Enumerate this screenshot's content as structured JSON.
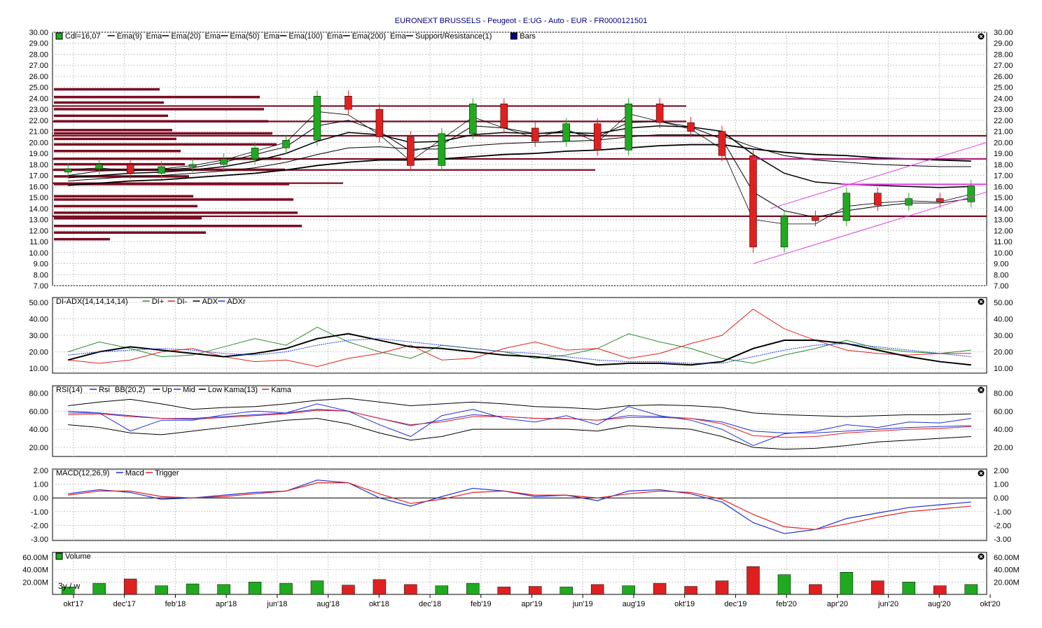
{
  "title": "EURONEXT BRUSSELS - Peugeot - E:UG - Auto - EUR - FR0000121501",
  "x_axis": {
    "labels": [
      "okt'17",
      "dec'17",
      "feb'18",
      "apr'18",
      "jun'18",
      "aug'18",
      "okt'18",
      "dec'18",
      "feb'19",
      "apr'19",
      "jun'19",
      "aug'19",
      "okt'19",
      "dec'19",
      "feb'20",
      "apr'20",
      "jun'20",
      "aug'20",
      "okt'20"
    ],
    "corner_label": "3y / w"
  },
  "panels": {
    "price": {
      "legend": [
        "Cdl=16,07",
        "Ema(9)",
        "Ema",
        "Ema(20)",
        "Ema",
        "Ema(50)",
        "Ema",
        "Ema(100)",
        "Ema",
        "Ema(200)",
        "Ema",
        "Support/Resistance(1)",
        "Bars"
      ],
      "y_ticks": [
        "30.00",
        "29.00",
        "28.00",
        "27.00",
        "26.00",
        "25.00",
        "24.00",
        "23.00",
        "22.00",
        "21.00",
        "20.00",
        "19.00",
        "18.00",
        "17.00",
        "16.00",
        "15.00",
        "14.00",
        "13.00",
        "12.00",
        "11.00",
        "10.00",
        "9.00",
        "8.00",
        "7.00"
      ]
    },
    "adx": {
      "legend": [
        "DI-ADX(14,14,14,14)",
        "DI+",
        "DI-",
        "ADX",
        "ADXr"
      ],
      "y_ticks": [
        "50.00",
        "40.00",
        "30.00",
        "20.00",
        "10.00"
      ]
    },
    "rsi": {
      "legend": [
        "RSI(14)",
        "Rsi",
        "BB(20,2)",
        "Up",
        "Mid",
        "Low",
        "Kama(13)",
        "Kama"
      ],
      "y_ticks": [
        "80.00",
        "60.00",
        "40.00",
        "20.00"
      ]
    },
    "macd": {
      "legend": [
        "MACD(12,26,9)",
        "Macd",
        "Trigger"
      ],
      "y_ticks": [
        "2.00",
        "1.00",
        "0.00",
        "-1.00",
        "-2.00",
        "-3.00"
      ]
    },
    "volume": {
      "legend": [
        "Volume"
      ],
      "y_ticks": [
        "60.00M",
        "40.00M",
        "20.00M"
      ]
    }
  },
  "colors": {
    "bull": "#1faa1f",
    "bear": "#e02020",
    "sr_bar": "#7a0d23",
    "di_plus": "#2e8b2e",
    "di_minus": "#e02020",
    "adx": "#000000",
    "adxr": "#2040e0",
    "rsi": "#2030d0",
    "bb": "#000000",
    "kama": "#e02020",
    "macd": "#2030d0",
    "trigger": "#e02020",
    "trend": "#e040e0"
  },
  "chart_data": {
    "type": "candlestick",
    "x_dates": [
      "2017-09-25",
      "2017-10-30",
      "2017-12-11",
      "2018-01-22",
      "2018-03-05",
      "2018-04-16",
      "2018-05-28",
      "2018-07-09",
      "2018-08-20",
      "2018-10-01",
      "2018-11-12",
      "2018-12-24",
      "2019-02-04",
      "2019-03-18",
      "2019-04-29",
      "2019-06-10",
      "2019-07-22",
      "2019-09-02",
      "2019-10-14",
      "2019-11-25",
      "2020-01-06",
      "2020-02-17",
      "2020-03-16",
      "2020-04-13",
      "2020-05-11",
      "2020-06-08",
      "2020-07-06",
      "2020-08-03",
      "2020-08-31",
      "2020-09-21"
    ],
    "close": [
      17.6,
      18.0,
      17.2,
      17.8,
      18.0,
      18.5,
      19.5,
      20.2,
      24.2,
      23.0,
      20.5,
      17.9,
      20.8,
      23.5,
      21.3,
      20.1,
      21.7,
      19.3,
      23.5,
      21.8,
      21.0,
      18.8,
      10.5,
      13.3,
      12.9,
      15.4,
      14.3,
      14.9,
      14.6,
      16.07
    ],
    "ema9": [
      17.5,
      17.7,
      17.4,
      17.6,
      17.9,
      18.4,
      19.2,
      20.0,
      22.8,
      22.5,
      20.7,
      18.3,
      20.3,
      22.3,
      21.3,
      20.4,
      21.2,
      20.0,
      22.6,
      21.9,
      21.2,
      19.4,
      13.0,
      12.6,
      12.6,
      14.2,
      14.5,
      14.7,
      14.6,
      15.3
    ],
    "ema20": [
      17.0,
      17.4,
      17.5,
      17.5,
      17.7,
      18.2,
      18.9,
      19.6,
      21.5,
      22.0,
      21.0,
      19.2,
      19.8,
      21.5,
      21.3,
      20.8,
      21.0,
      20.5,
      21.8,
      21.9,
      21.4,
      20.3,
      15.5,
      13.8,
      13.2,
      13.8,
      14.2,
      14.5,
      14.5,
      14.9
    ],
    "ema50": [
      16.8,
      17.0,
      17.2,
      17.3,
      17.5,
      17.8,
      18.3,
      19.0,
      20.1,
      20.9,
      20.7,
      20.0,
      20.1,
      20.7,
      20.9,
      20.8,
      20.9,
      20.8,
      21.3,
      21.5,
      21.4,
      21.0,
      18.9,
      17.2,
      16.4,
      16.2,
      16.1,
      16.0,
      15.9,
      16.0
    ],
    "ema100": [
      16.5,
      16.7,
      16.9,
      17.0,
      17.2,
      17.4,
      17.7,
      18.2,
      18.9,
      19.5,
      19.6,
      19.4,
      19.4,
      19.7,
      19.9,
      20.0,
      20.1,
      20.2,
      20.5,
      20.7,
      20.7,
      20.6,
      19.6,
      18.8,
      18.4,
      18.2,
      18.0,
      17.9,
      17.8,
      17.8
    ],
    "ema200": [
      16.1,
      16.3,
      16.5,
      16.6,
      16.8,
      17.0,
      17.2,
      17.5,
      17.9,
      18.2,
      18.4,
      18.4,
      18.5,
      18.7,
      18.9,
      19.0,
      19.2,
      19.3,
      19.5,
      19.7,
      19.8,
      19.8,
      19.4,
      19.1,
      18.9,
      18.8,
      18.6,
      18.5,
      18.4,
      18.3
    ],
    "support_resistance": [
      11.2,
      11.8,
      12.4,
      13.1,
      13.6,
      14.2,
      14.8,
      15.1,
      16.2,
      16.9,
      17.5,
      18.0,
      18.5,
      19.2,
      19.8,
      20.3,
      20.8,
      21.1,
      21.9,
      22.4,
      23.0,
      23.6,
      24.1,
      24.8
    ],
    "di_plus": [
      20,
      26,
      22,
      17,
      18,
      23,
      28,
      24,
      35,
      26,
      20,
      16,
      24,
      22,
      20,
      16,
      18,
      22,
      31,
      26,
      22,
      16,
      13,
      18,
      22,
      27,
      22,
      20,
      19,
      21
    ],
    "di_minus": [
      15,
      13,
      15,
      20,
      22,
      17,
      14,
      15,
      11,
      16,
      19,
      24,
      15,
      16,
      22,
      26,
      21,
      22,
      16,
      19,
      25,
      30,
      46,
      34,
      27,
      21,
      19,
      18,
      19,
      19
    ],
    "adx": [
      15,
      20,
      23,
      21,
      19,
      17,
      19,
      22,
      28,
      31,
      27,
      23,
      22,
      20,
      18,
      17,
      15,
      12,
      13,
      13,
      12,
      14,
      22,
      27,
      27,
      25,
      21,
      17,
      14,
      12
    ],
    "adxr": [
      18,
      20,
      21,
      22,
      21,
      19,
      18,
      20,
      24,
      27,
      28,
      26,
      24,
      22,
      20,
      19,
      17,
      15,
      14,
      14,
      13,
      13,
      17,
      21,
      24,
      25,
      23,
      21,
      19,
      17
    ],
    "rsi": [
      60,
      58,
      38,
      50,
      50,
      56,
      60,
      58,
      68,
      60,
      45,
      32,
      55,
      62,
      52,
      48,
      55,
      45,
      65,
      55,
      50,
      40,
      22,
      35,
      38,
      45,
      42,
      48,
      47,
      52
    ],
    "bb_up": [
      66,
      70,
      73,
      68,
      62,
      64,
      65,
      68,
      72,
      74,
      70,
      66,
      68,
      70,
      68,
      65,
      64,
      62,
      66,
      67,
      66,
      64,
      58,
      56,
      55,
      54,
      55,
      56,
      56,
      57
    ],
    "bb_mid": [
      58,
      58,
      55,
      52,
      52,
      54,
      56,
      58,
      62,
      60,
      52,
      44,
      50,
      56,
      54,
      52,
      52,
      50,
      55,
      54,
      52,
      48,
      38,
      36,
      36,
      38,
      40,
      42,
      43,
      44
    ],
    "bb_low": [
      45,
      42,
      36,
      34,
      38,
      42,
      46,
      50,
      52,
      46,
      36,
      28,
      32,
      40,
      40,
      40,
      40,
      38,
      44,
      42,
      40,
      32,
      20,
      18,
      19,
      22,
      26,
      28,
      30,
      32
    ],
    "kama": [
      56,
      57,
      54,
      52,
      51,
      53,
      55,
      57,
      61,
      60,
      52,
      45,
      48,
      54,
      54,
      52,
      52,
      50,
      53,
      53,
      52,
      46,
      33,
      31,
      32,
      36,
      38,
      40,
      41,
      43
    ],
    "macd": [
      0.3,
      0.6,
      0.4,
      -0.1,
      0.0,
      0.2,
      0.4,
      0.5,
      1.3,
      1.1,
      0.0,
      -0.6,
      0.1,
      0.7,
      0.5,
      0.1,
      0.2,
      -0.2,
      0.5,
      0.6,
      0.3,
      -0.3,
      -1.8,
      -2.6,
      -2.3,
      -1.5,
      -1.1,
      -0.7,
      -0.5,
      -0.3
    ],
    "trigger": [
      0.2,
      0.5,
      0.5,
      0.1,
      0.0,
      0.1,
      0.3,
      0.5,
      1.1,
      1.1,
      0.3,
      -0.4,
      -0.1,
      0.4,
      0.5,
      0.2,
      0.2,
      0.0,
      0.3,
      0.5,
      0.4,
      -0.1,
      -1.2,
      -2.1,
      -2.3,
      -1.9,
      -1.4,
      -1.0,
      -0.8,
      -0.6
    ],
    "volume_millions": [
      12,
      18,
      25,
      14,
      17,
      16,
      20,
      18,
      22,
      15,
      24,
      16,
      14,
      18,
      12,
      13,
      12,
      16,
      14,
      18,
      13,
      22,
      45,
      32,
      16,
      36,
      22,
      20,
      14,
      16
    ],
    "volume_up": [
      true,
      true,
      false,
      true,
      true,
      true,
      true,
      true,
      true,
      false,
      false,
      false,
      true,
      true,
      false,
      false,
      true,
      false,
      true,
      false,
      false,
      false,
      false,
      true,
      false,
      true,
      false,
      true,
      false,
      true
    ],
    "y_range_price": [
      7,
      30
    ],
    "y_range_adx": [
      7,
      53
    ],
    "y_range_rsi": [
      10,
      88
    ],
    "y_range_macd": [
      -3.1,
      2.1
    ],
    "y_range_volume": [
      0,
      68
    ]
  }
}
